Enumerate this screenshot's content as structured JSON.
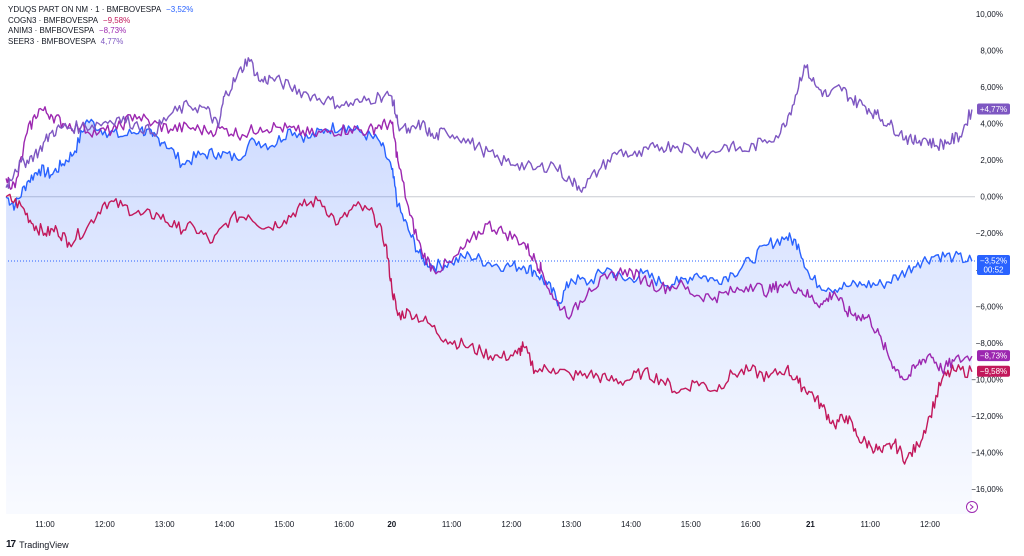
{
  "legend": [
    {
      "name": "YDUQS PART ON NM · 1 · BMFBOVESPA",
      "value": "−3,52%",
      "color": "#2962ff"
    },
    {
      "name": "COGN3 · BMFBOVESPA",
      "value": "−9,58%",
      "color": "#c2185b"
    },
    {
      "name": "ANIM3 · BMFBOVESPA",
      "value": "−8,73%",
      "color": "#9c27b0"
    },
    {
      "name": "SEER3 · BMFBOVESPA",
      "value": "4,77%",
      "color": "#7e57c2"
    }
  ],
  "brand": {
    "logo": "17",
    "name": "TradingView"
  },
  "chart_data": {
    "type": "line",
    "y_tick_labels": [
      "10,00%",
      "8,00%",
      "6,00%",
      "4,00%",
      "2,00%",
      "0,00%",
      "−2,00%",
      "−4,00%",
      "−6,00%",
      "−8,00%",
      "−10,00%",
      "−12,00%",
      "−14,00%",
      "−16,00%"
    ],
    "y_tick_values": [
      10,
      8,
      6,
      4,
      2,
      0,
      -2,
      -4,
      -6,
      -8,
      -10,
      -12,
      -14,
      -16
    ],
    "ylim": [
      -16.6,
      10.5
    ],
    "x_tick_labels": [
      "11:00",
      "12:00",
      "13:00",
      "14:00",
      "15:00",
      "16:00",
      "20",
      "11:00",
      "12:00",
      "13:00",
      "14:00",
      "15:00",
      "16:00",
      "21",
      "11:00",
      "12:00"
    ],
    "x_tick_bold": [
      false,
      false,
      false,
      false,
      false,
      false,
      true,
      false,
      false,
      false,
      false,
      false,
      false,
      true,
      false,
      false
    ],
    "x_tick_positions": [
      1,
      2,
      3,
      4,
      5,
      6,
      6.8,
      7.8,
      8.8,
      9.8,
      10.8,
      11.8,
      12.8,
      13.8,
      14.8,
      15.8
    ],
    "xlim": [
      0.35,
      16.65
    ],
    "grid": false,
    "baseline": 0,
    "series": [
      {
        "name": "YDUQS PART ON NM · 1 · BMFBOVESPA",
        "color": "#2962ff",
        "area": true,
        "last_label": "−3,52%",
        "countdown": "00:52",
        "x": [
          0.35,
          0.5,
          0.7,
          0.9,
          1.1,
          1.3,
          1.5,
          1.7,
          2.0,
          2.3,
          2.6,
          2.8,
          3.0,
          3.3,
          3.6,
          3.9,
          4.2,
          4.5,
          4.8,
          5.1,
          5.4,
          5.7,
          6.0,
          6.3,
          6.6,
          6.8,
          6.9,
          7.1,
          7.3,
          7.5,
          7.8,
          8.1,
          8.4,
          8.7,
          9.0,
          9.2,
          9.4,
          9.6,
          9.8,
          10.1,
          10.4,
          10.7,
          11.0,
          11.3,
          11.6,
          11.9,
          12.2,
          12.5,
          12.8,
          13.1,
          13.4,
          13.6,
          13.8,
          14.1,
          14.4,
          14.7,
          15.0,
          15.3,
          15.6,
          15.9,
          16.2,
          16.5
        ],
        "y": [
          0.0,
          -0.5,
          0.8,
          1.5,
          1.2,
          1.8,
          2.5,
          4.2,
          3.6,
          3.3,
          3.7,
          3.3,
          3.0,
          1.8,
          2.3,
          2.4,
          2.1,
          3.1,
          2.8,
          3.7,
          3.2,
          3.7,
          3.9,
          3.5,
          3.0,
          1.5,
          -0.5,
          -2.0,
          -3.4,
          -3.8,
          -3.6,
          -3.2,
          -3.6,
          -3.8,
          -3.8,
          -4.1,
          -4.8,
          -5.8,
          -4.5,
          -4.7,
          -3.9,
          -4.6,
          -4.2,
          -4.7,
          -4.7,
          -4.2,
          -4.6,
          -4.2,
          -3.5,
          -2.6,
          -2.2,
          -2.6,
          -4.5,
          -5.0,
          -4.9,
          -4.8,
          -4.8,
          -4.3,
          -3.6,
          -3.2,
          -3.3,
          -3.52
        ]
      },
      {
        "name": "COGN3 · BMFBOVESPA",
        "color": "#c2185b",
        "area": false,
        "last_label": "−9,58%",
        "x": [
          0.35,
          0.6,
          0.8,
          1.0,
          1.2,
          1.4,
          1.7,
          2.0,
          2.3,
          2.6,
          2.9,
          3.2,
          3.5,
          3.8,
          4.1,
          4.4,
          4.7,
          5.0,
          5.3,
          5.6,
          5.9,
          6.2,
          6.5,
          6.7,
          6.8,
          6.9,
          7.1,
          7.4,
          7.7,
          8.0,
          8.3,
          8.6,
          8.9,
          9.0,
          9.2,
          9.5,
          9.8,
          10.1,
          10.4,
          10.7,
          11.0,
          11.3,
          11.6,
          11.9,
          12.2,
          12.5,
          12.8,
          13.1,
          13.4,
          13.6,
          13.8,
          14.0,
          14.2,
          14.4,
          14.6,
          14.8,
          15.0,
          15.2,
          15.4,
          15.6,
          15.8,
          16.0,
          16.2,
          16.5
        ],
        "y": [
          0.0,
          -0.5,
          -1.5,
          -2.0,
          -1.8,
          -2.5,
          -1.7,
          -0.3,
          -0.5,
          -1.0,
          -1.0,
          -1.7,
          -1.7,
          -2.5,
          -1.2,
          -1.0,
          -1.7,
          -1.3,
          -0.5,
          -0.2,
          -1.5,
          -0.5,
          -1.0,
          -2.6,
          -5.0,
          -6.5,
          -6.3,
          -6.9,
          -7.8,
          -8.1,
          -8.5,
          -8.8,
          -8.6,
          -8.2,
          -9.5,
          -9.4,
          -9.8,
          -9.7,
          -10.0,
          -10.1,
          -9.6,
          -10.0,
          -10.7,
          -10.1,
          -10.6,
          -9.7,
          -9.5,
          -9.9,
          -9.4,
          -10.2,
          -10.7,
          -11.5,
          -12.5,
          -12.0,
          -13.2,
          -13.6,
          -14.0,
          -13.5,
          -14.4,
          -13.6,
          -12.0,
          -10.0,
          -9.5,
          -9.58
        ]
      },
      {
        "name": "ANIM3 · BMFBOVESPA",
        "color": "#9c27b0",
        "area": false,
        "last_label": "−8,73%",
        "x": [
          0.35,
          0.5,
          0.7,
          0.9,
          1.1,
          1.3,
          1.6,
          1.9,
          2.2,
          2.5,
          2.8,
          3.1,
          3.4,
          3.7,
          4.0,
          4.3,
          4.6,
          4.9,
          5.2,
          5.5,
          5.8,
          6.1,
          6.4,
          6.6,
          6.8,
          6.9,
          7.1,
          7.3,
          7.5,
          7.8,
          8.1,
          8.4,
          8.7,
          9.0,
          9.2,
          9.3,
          9.5,
          9.8,
          10.1,
          10.4,
          10.7,
          11.0,
          11.3,
          11.6,
          11.9,
          12.2,
          12.5,
          12.8,
          13.1,
          13.3,
          13.6,
          13.8,
          14.0,
          14.2,
          14.4,
          14.6,
          14.8,
          15.0,
          15.2,
          15.4,
          15.6,
          15.8,
          16.0,
          16.2,
          16.5
        ],
        "y": [
          1.0,
          0.5,
          3.5,
          4.8,
          4.5,
          4.0,
          3.8,
          3.5,
          3.7,
          4.5,
          4.0,
          3.7,
          3.8,
          3.6,
          3.7,
          3.4,
          3.8,
          3.8,
          3.6,
          3.4,
          3.6,
          3.7,
          3.6,
          3.9,
          4.0,
          2.0,
          -1.0,
          -3.0,
          -4.0,
          -3.6,
          -2.5,
          -1.5,
          -2.0,
          -2.5,
          -3.5,
          -4.0,
          -5.6,
          -6.5,
          -5.0,
          -4.5,
          -4.0,
          -4.5,
          -5.0,
          -4.8,
          -5.4,
          -5.5,
          -5.2,
          -4.8,
          -5.2,
          -4.8,
          -5.0,
          -5.5,
          -5.9,
          -5.2,
          -6.3,
          -6.5,
          -6.7,
          -8.0,
          -9.3,
          -10.0,
          -9.2,
          -8.6,
          -9.5,
          -9.0,
          -8.73
        ]
      },
      {
        "name": "SEER3 · BMFBOVESPA",
        "color": "#7e57c2",
        "area": false,
        "last_label": "+4,77%",
        "x": [
          0.35,
          0.5,
          0.7,
          0.9,
          1.1,
          1.3,
          1.6,
          1.9,
          2.2,
          2.5,
          2.8,
          3.1,
          3.4,
          3.7,
          3.9,
          4.0,
          4.2,
          4.4,
          4.6,
          4.8,
          5.1,
          5.4,
          5.7,
          6.0,
          6.3,
          6.6,
          6.8,
          6.9,
          7.1,
          7.3,
          7.5,
          7.7,
          8.0,
          8.3,
          8.6,
          8.9,
          9.2,
          9.5,
          9.8,
          10.0,
          10.3,
          10.6,
          10.9,
          11.2,
          11.5,
          11.8,
          12.1,
          12.4,
          12.7,
          13.0,
          13.3,
          13.5,
          13.7,
          13.9,
          14.1,
          14.3,
          14.5,
          14.7,
          14.9,
          15.1,
          15.3,
          15.5,
          15.7,
          15.9,
          16.1,
          16.3,
          16.5
        ],
        "y": [
          0.5,
          1.5,
          2.0,
          2.5,
          3.5,
          3.8,
          3.8,
          4.0,
          4.3,
          4.0,
          3.5,
          4.5,
          5.0,
          4.8,
          3.8,
          5.5,
          6.5,
          7.6,
          6.3,
          6.5,
          6.0,
          5.6,
          5.3,
          5.0,
          5.2,
          5.5,
          5.5,
          4.0,
          3.5,
          4.0,
          3.2,
          3.6,
          3.2,
          2.6,
          2.0,
          1.8,
          1.5,
          1.8,
          0.8,
          0.5,
          1.6,
          2.5,
          2.2,
          2.7,
          2.8,
          2.7,
          2.3,
          2.8,
          2.5,
          3.0,
          3.5,
          5.0,
          7.2,
          6.0,
          5.5,
          6.0,
          5.3,
          5.0,
          4.5,
          4.0,
          3.5,
          3.0,
          3.2,
          2.8,
          3.0,
          3.3,
          4.77
        ]
      }
    ],
    "price_lines": [
      {
        "series": 0,
        "value": -3.52,
        "style": "dotted"
      },
      {
        "series": -1,
        "value": 0,
        "style": "solid"
      }
    ]
  }
}
